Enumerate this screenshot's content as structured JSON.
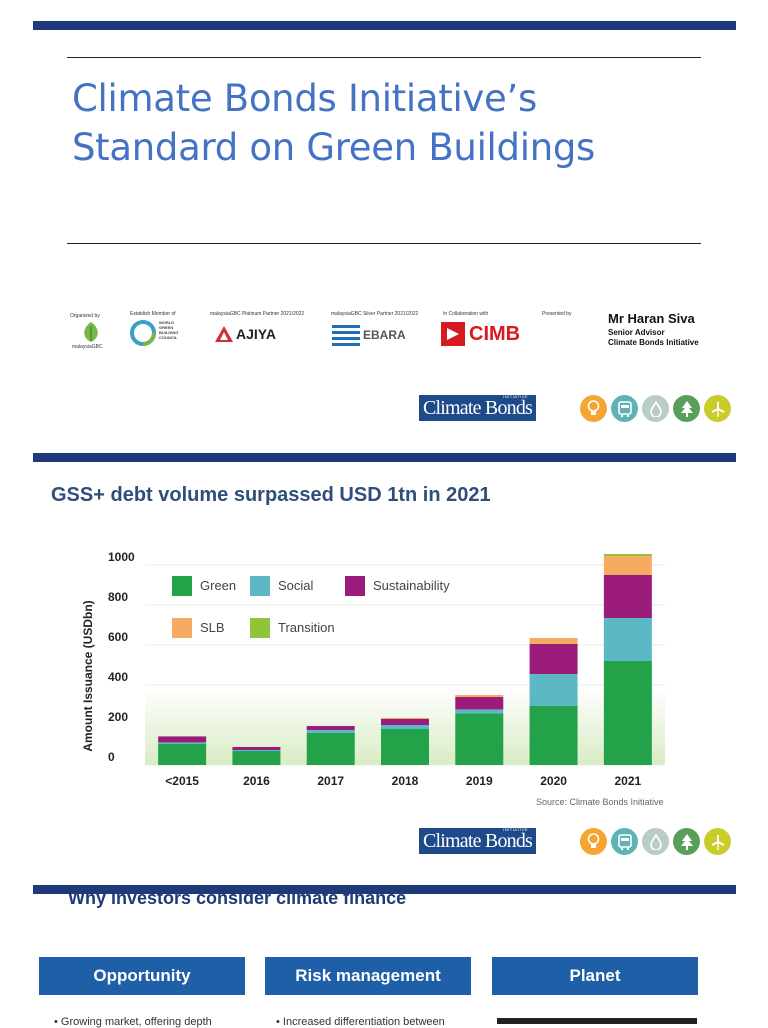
{
  "slide1": {
    "title_line1": "Climate Bonds Initiative’s",
    "title_line2": "Standard on Green Buildings",
    "sponsors": [
      {
        "label": "Organized by",
        "logo_text": "malaysiaGBC"
      },
      {
        "label": "Establish Member of",
        "logo_text": "WORLD GREEN BUILDING COUNCIL"
      },
      {
        "label": "malaysiaGBC Platinum Partner 2021/2022",
        "logo_text": "AJIYA"
      },
      {
        "label": "malaysiaGBC Silver Partner 2021/2022",
        "logo_text": "EBARA"
      },
      {
        "label": "In Collaboration with",
        "logo_text": "CIMB"
      },
      {
        "label": "Presented by",
        "logo_text": ""
      }
    ],
    "presenter": {
      "name": "Mr Haran Siva",
      "role": "Senior Advisor",
      "org": "Climate Bonds Initiative"
    }
  },
  "brand": {
    "logo_text": "Climate Bonds",
    "logo_super": "INITIATIVE"
  },
  "slide2": {
    "title": "GSS+ debt volume surpassed USD 1tn in 2021",
    "source": "Source: Climate Bonds Initiative"
  },
  "chart_data": {
    "type": "bar",
    "stacked": true,
    "categories": [
      "<2015",
      "2016",
      "2017",
      "2018",
      "2019",
      "2020",
      "2021"
    ],
    "series": [
      {
        "name": "Green",
        "color": "#24a249",
        "values": [
          105,
          70,
          160,
          180,
          258,
          295,
          520
        ]
      },
      {
        "name": "Social",
        "color": "#5db8c6",
        "values": [
          8,
          5,
          15,
          20,
          20,
          160,
          215
        ]
      },
      {
        "name": "Sustainability",
        "color": "#9c1c7c",
        "values": [
          30,
          15,
          20,
          30,
          62,
          150,
          215
        ]
      },
      {
        "name": "SLB",
        "color": "#f6ab62",
        "values": [
          0,
          0,
          0,
          5,
          10,
          30,
          95
        ]
      },
      {
        "name": "Transition",
        "color": "#8fc43b",
        "values": [
          0,
          0,
          0,
          0,
          0,
          0,
          10
        ]
      }
    ],
    "ylabel": "Amount Issuance (USDbn)",
    "yticks": [
      "0",
      "200",
      "400",
      "600",
      "800",
      "1000"
    ],
    "ylim": [
      0,
      1050
    ],
    "legend_position": "top-left"
  },
  "slide3": {
    "title": "Why investors consider climate finance",
    "cards": [
      "Opportunity",
      "Risk management",
      "Planet"
    ],
    "bullets": [
      "Growing market, offering depth",
      "Increased differentiation between"
    ]
  }
}
